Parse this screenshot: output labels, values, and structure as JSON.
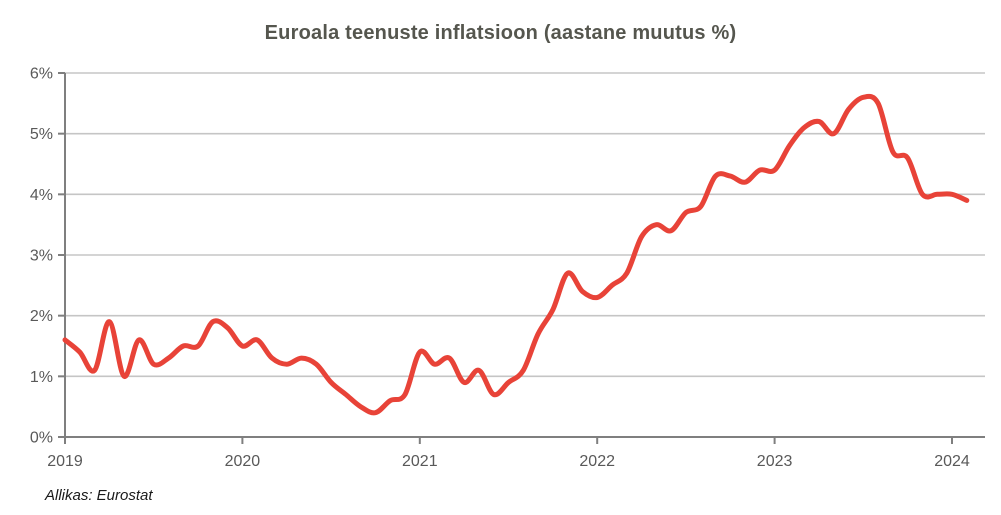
{
  "title": "Euroala teenuste inflatsioon (aastane muutus %)",
  "source_note": "Allikas: Eurostat",
  "colors": {
    "line": "#e84338",
    "grid": "#c5c5c5",
    "axis": "#7f7f7f",
    "tick_label": "#595959",
    "title": "#55564e",
    "source": "#1a1a1a",
    "background": "#ffffff"
  },
  "chart_data": {
    "type": "line",
    "title": "Euroala teenuste inflatsioon (aastane muutus %)",
    "series_name": "Euroala teenuste inflatsioon",
    "x": [
      "2019-01",
      "2019-02",
      "2019-03",
      "2019-04",
      "2019-05",
      "2019-06",
      "2019-07",
      "2019-08",
      "2019-09",
      "2019-10",
      "2019-11",
      "2019-12",
      "2020-01",
      "2020-02",
      "2020-03",
      "2020-04",
      "2020-05",
      "2020-06",
      "2020-07",
      "2020-08",
      "2020-09",
      "2020-10",
      "2020-11",
      "2020-12",
      "2021-01",
      "2021-02",
      "2021-03",
      "2021-04",
      "2021-05",
      "2021-06",
      "2021-07",
      "2021-08",
      "2021-09",
      "2021-10",
      "2021-11",
      "2021-12",
      "2022-01",
      "2022-02",
      "2022-03",
      "2022-04",
      "2022-05",
      "2022-06",
      "2022-07",
      "2022-08",
      "2022-09",
      "2022-10",
      "2022-11",
      "2022-12",
      "2023-01",
      "2023-02",
      "2023-03",
      "2023-04",
      "2023-05",
      "2023-06",
      "2023-07",
      "2023-08",
      "2023-09",
      "2023-10",
      "2023-11",
      "2023-12",
      "2024-01",
      "2024-02"
    ],
    "values": [
      1.6,
      1.4,
      1.1,
      1.9,
      1.0,
      1.6,
      1.2,
      1.3,
      1.5,
      1.5,
      1.9,
      1.8,
      1.5,
      1.6,
      1.3,
      1.2,
      1.3,
      1.2,
      0.9,
      0.7,
      0.5,
      0.4,
      0.6,
      0.7,
      1.4,
      1.2,
      1.3,
      0.9,
      1.1,
      0.7,
      0.9,
      1.1,
      1.7,
      2.1,
      2.7,
      2.4,
      2.3,
      2.5,
      2.7,
      3.3,
      3.5,
      3.4,
      3.7,
      3.8,
      4.3,
      4.3,
      4.2,
      4.4,
      4.4,
      4.8,
      5.1,
      5.2,
      5.0,
      5.4,
      5.6,
      5.5,
      4.7,
      4.6,
      4.0,
      4.0,
      4.0,
      3.9
    ],
    "xlabel": "",
    "ylabel": "",
    "ylim": [
      0,
      6
    ],
    "y_tick_labels": [
      "0%",
      "1%",
      "2%",
      "3%",
      "4%",
      "5%",
      "6%"
    ],
    "x_tick_labels": [
      "2019",
      "2020",
      "2021",
      "2022",
      "2023",
      "2024"
    ],
    "grid": "horizontal",
    "legend": "none",
    "smooth": true,
    "source_note": "Allikas: Eurostat"
  }
}
